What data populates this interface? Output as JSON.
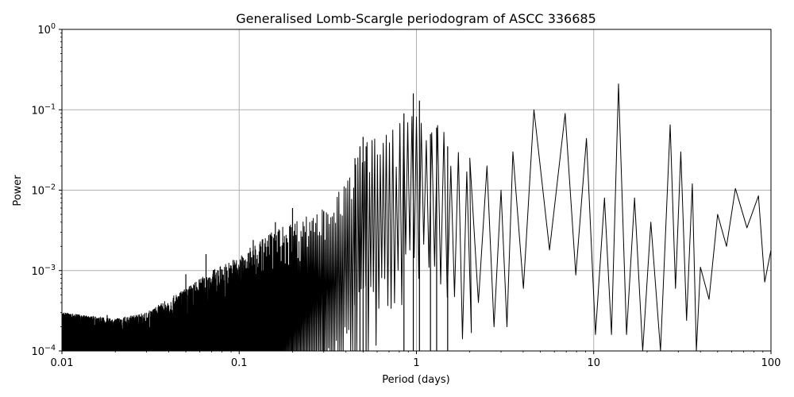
{
  "chart_data": {
    "type": "line",
    "title": "Generalised Lomb-Scargle periodogram of ASCC 336685",
    "xlabel": "Period (days)",
    "ylabel": "Power",
    "xscale": "log",
    "yscale": "log",
    "xlim": [
      0.01,
      100
    ],
    "ylim": [
      0.0001,
      1
    ],
    "grid": true,
    "x_ticks": [
      {
        "value": 0.01,
        "label": "0.01"
      },
      {
        "value": 0.1,
        "label": "0.1"
      },
      {
        "value": 1,
        "label": "1"
      },
      {
        "value": 10,
        "label": "10"
      },
      {
        "value": 100,
        "label": "100"
      }
    ],
    "y_ticks": [
      {
        "value": 0.0001,
        "base": "10",
        "exp": "−4"
      },
      {
        "value": 0.001,
        "base": "10",
        "exp": "−3"
      },
      {
        "value": 0.01,
        "base": "10",
        "exp": "−2"
      },
      {
        "value": 0.1,
        "base": "10",
        "exp": "−1"
      },
      {
        "value": 1,
        "base": "10",
        "exp": "0"
      }
    ],
    "series": [
      {
        "color": "#000000",
        "envelope": [
          {
            "period": 0.01,
            "power": 0.0003
          },
          {
            "period": 0.02,
            "power": 0.00025
          },
          {
            "period": 0.03,
            "power": 0.0003
          },
          {
            "period": 0.05,
            "power": 0.0006
          },
          {
            "period": 0.07,
            "power": 0.001
          },
          {
            "period": 0.1,
            "power": 0.0015
          },
          {
            "period": 0.15,
            "power": 0.003
          },
          {
            "period": 0.2,
            "power": 0.004
          },
          {
            "period": 0.3,
            "power": 0.006
          },
          {
            "period": 0.4,
            "power": 0.012
          },
          {
            "period": 0.5,
            "power": 0.04
          },
          {
            "period": 0.7,
            "power": 0.05
          },
          {
            "period": 1.0,
            "power": 0.12
          },
          {
            "period": 1.5,
            "power": 0.06
          },
          {
            "period": 2.0,
            "power": 0.04
          }
        ],
        "peaks": [
          {
            "period": 0.018,
            "power": 0.00028
          },
          {
            "period": 0.05,
            "power": 0.0009
          },
          {
            "period": 0.065,
            "power": 0.0016
          },
          {
            "period": 0.12,
            "power": 0.0024
          },
          {
            "period": 0.16,
            "power": 0.004
          },
          {
            "period": 0.2,
            "power": 0.006
          },
          {
            "period": 0.3,
            "power": 0.0055
          },
          {
            "period": 0.45,
            "power": 0.025
          },
          {
            "period": 0.48,
            "power": 0.035
          },
          {
            "period": 0.5,
            "power": 0.046
          },
          {
            "period": 0.52,
            "power": 0.035
          },
          {
            "period": 0.85,
            "power": 0.09
          },
          {
            "period": 0.96,
            "power": 0.16
          },
          {
            "period": 1.04,
            "power": 0.13
          },
          {
            "period": 1.2,
            "power": 0.05
          },
          {
            "period": 1.3,
            "power": 0.06
          },
          {
            "period": 1.5,
            "power": 0.035
          },
          {
            "period": 2.0,
            "power": 0.025
          },
          {
            "period": 2.5,
            "power": 0.02
          },
          {
            "period": 3.0,
            "power": 0.01
          },
          {
            "period": 3.5,
            "power": 0.03
          },
          {
            "period": 4.6,
            "power": 0.1
          },
          {
            "period": 6.9,
            "power": 0.09
          },
          {
            "period": 9.1,
            "power": 0.044
          },
          {
            "period": 11.5,
            "power": 0.008
          },
          {
            "period": 13.8,
            "power": 0.21
          },
          {
            "period": 17.0,
            "power": 0.008
          },
          {
            "period": 21.0,
            "power": 0.004
          },
          {
            "period": 27.0,
            "power": 0.065
          },
          {
            "period": 31.0,
            "power": 0.03
          },
          {
            "period": 36.0,
            "power": 0.012
          },
          {
            "period": 40.0,
            "power": 0.0011
          },
          {
            "period": 50.0,
            "power": 0.005
          },
          {
            "period": 63.0,
            "power": 0.0105
          },
          {
            "period": 85.0,
            "power": 0.0085
          },
          {
            "period": 100.0,
            "power": 0.0018
          }
        ]
      }
    ]
  }
}
